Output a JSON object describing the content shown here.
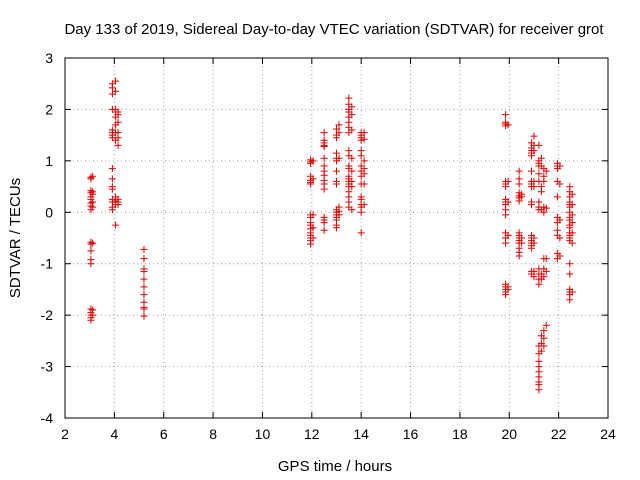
{
  "chart_data": {
    "type": "scatter",
    "title": "Day 133 of 2019, Sidereal Day-to-day VTEC variation (SDTVAR) for receiver grot",
    "xlabel": "GPS time / hours",
    "ylabel": "SDTVAR / TECUs",
    "xlim": [
      2,
      24
    ],
    "ylim": [
      -4,
      3
    ],
    "xticks": [
      2,
      4,
      6,
      8,
      10,
      12,
      14,
      16,
      18,
      20,
      22,
      24
    ],
    "yticks": [
      -4,
      -3,
      -2,
      -1,
      0,
      1,
      2,
      3
    ],
    "xtick_labels": [
      "2",
      "4",
      "6",
      "8",
      "10",
      "12",
      "14",
      "16",
      "18",
      "20",
      "22",
      "24"
    ],
    "ytick_labels": [
      "-4",
      "-3",
      "-2",
      "-1",
      "0",
      "1",
      "2",
      "3"
    ],
    "grid": true,
    "marker": "plus",
    "series": [
      {
        "name": "SDTVAR",
        "color": "#e00000",
        "clusters": [
          {
            "x": 3.05,
            "values": [
              0.68,
              0.65,
              0.42,
              0.38,
              0.3,
              0.25,
              0.18,
              0.12,
              0.05,
              -0.58,
              -0.62,
              -0.75,
              -0.92,
              -1.0,
              -1.88,
              -1.95,
              -2.0,
              -2.05,
              -2.1
            ]
          },
          {
            "x": 3.12,
            "values": [
              0.7,
              0.4,
              0.35,
              0.2,
              0.1,
              -0.6,
              -1.9,
              -2.0
            ]
          },
          {
            "x": 3.92,
            "values": [
              2.5,
              2.42,
              2.3,
              2.0,
              1.6,
              1.55,
              1.5,
              1.45,
              0.85,
              0.65,
              0.5,
              0.45,
              0.25,
              0.2,
              0.1,
              0.05
            ]
          },
          {
            "x": 4.05,
            "values": [
              2.55,
              2.35,
              2.0,
              1.95,
              1.85,
              1.7,
              1.55,
              1.4,
              0.3,
              0.22,
              0.15,
              -0.25
            ]
          },
          {
            "x": 4.15,
            "values": [
              1.95,
              1.9,
              1.75,
              1.55,
              1.45,
              1.3,
              0.25,
              0.2,
              0.15
            ]
          },
          {
            "x": 5.2,
            "values": [
              -0.72,
              -0.9,
              -1.1,
              -1.15,
              -1.3,
              -1.45,
              -1.6,
              -1.75,
              -1.85,
              -1.88,
              -2.02
            ]
          },
          {
            "x": 11.95,
            "values": [
              1.02,
              0.98,
              0.95,
              0.7,
              0.62,
              0.58,
              0.55,
              -0.05,
              -0.1,
              -0.2,
              -0.25,
              -0.32,
              -0.4,
              -0.45,
              -0.5,
              -0.55,
              -0.62
            ]
          },
          {
            "x": 12.05,
            "values": [
              1.0,
              0.65,
              -0.05,
              -0.3,
              -0.5
            ]
          },
          {
            "x": 12.5,
            "values": [
              1.55,
              1.4,
              1.35,
              1.3,
              1.28,
              1.05,
              0.9,
              0.8,
              0.72,
              0.62,
              0.55,
              0.45,
              -0.1,
              -0.15,
              -0.2,
              -0.35
            ]
          },
          {
            "x": 13.0,
            "values": [
              1.62,
              1.5,
              1.45,
              1.15,
              1.05,
              1.0,
              0.8,
              0.6,
              0.55,
              0.05,
              0.0,
              -0.05,
              -0.1,
              -0.15,
              -0.25,
              -0.3
            ]
          },
          {
            "x": 13.1,
            "values": [
              1.7,
              1.55,
              1.05,
              0.1,
              0.02,
              -0.05
            ]
          },
          {
            "x": 13.5,
            "values": [
              2.22,
              2.1,
              2.0,
              1.95,
              1.85,
              1.75,
              1.65,
              1.55,
              1.2,
              1.1,
              0.9,
              0.85,
              0.7,
              0.65,
              0.6,
              0.55,
              0.5,
              0.4,
              0.3,
              0.2,
              0.1
            ]
          },
          {
            "x": 13.62,
            "values": [
              2.05,
              1.9,
              1.6,
              1.05,
              0.8,
              0.6,
              0.5,
              0.05
            ]
          },
          {
            "x": 14.0,
            "values": [
              1.55,
              1.5,
              1.45,
              1.4,
              1.2,
              1.1,
              0.9,
              0.8,
              0.7,
              0.55,
              0.3,
              0.25,
              0.15,
              0.1,
              0.0,
              -0.4
            ]
          },
          {
            "x": 14.12,
            "values": [
              1.55,
              1.42,
              1.0,
              0.85,
              0.75,
              0.55,
              0.15
            ]
          },
          {
            "x": 19.85,
            "values": [
              1.9,
              1.75,
              1.72,
              1.68,
              0.6,
              0.55,
              0.5,
              0.25,
              0.2,
              0.15,
              0.05,
              -0.05,
              -0.4,
              -0.5,
              -0.6,
              -1.4,
              -1.45,
              -1.5,
              -1.55,
              -1.6
            ]
          },
          {
            "x": 19.95,
            "values": [
              1.7,
              0.6,
              0.2,
              -0.45,
              -1.45,
              -1.5
            ]
          },
          {
            "x": 20.4,
            "values": [
              0.8,
              0.65,
              0.55,
              0.38,
              0.32,
              0.28,
              0.22,
              -0.4,
              -0.45,
              -0.5,
              -0.55,
              -0.6,
              -0.7,
              -0.78,
              -0.85
            ]
          },
          {
            "x": 20.5,
            "values": [
              0.35,
              0.3,
              -0.5,
              -0.6
            ]
          },
          {
            "x": 20.9,
            "values": [
              1.35,
              1.25,
              1.2,
              1.15,
              1.1,
              0.8,
              0.6,
              0.55,
              0.5,
              0.2,
              0.15,
              -0.45,
              -0.5,
              -0.55,
              -0.6,
              -0.65,
              -0.7,
              -1.15,
              -1.2
            ]
          },
          {
            "x": 21.0,
            "values": [
              1.48,
              1.3,
              1.2,
              0.6,
              0.5,
              -0.5,
              -0.6,
              -1.15,
              -1.25
            ]
          },
          {
            "x": 21.2,
            "values": [
              1.3,
              1.0,
              0.95,
              0.9,
              0.75,
              0.6,
              0.2,
              0.1,
              0.05,
              -1.1,
              -1.2,
              -1.3,
              -1.4,
              -2.6,
              -2.75,
              -2.9,
              -3.0,
              -3.1,
              -3.2,
              -3.3,
              -3.35,
              -3.45
            ]
          },
          {
            "x": 21.3,
            "values": [
              1.05,
              0.9,
              0.5,
              0.4,
              0.05,
              -1.2,
              -1.3,
              -2.4,
              -2.55,
              -2.7
            ]
          },
          {
            "x": 21.4,
            "values": [
              0.85,
              0.7,
              0.6,
              0.1,
              0.0,
              -0.9,
              -1.1,
              -1.25,
              -2.3,
              -2.45,
              -2.6
            ]
          },
          {
            "x": 21.5,
            "values": [
              0.8,
              0.08,
              -0.9,
              -1.15,
              -2.2
            ]
          },
          {
            "x": 21.95,
            "values": [
              0.95,
              0.9,
              0.85,
              0.6,
              0.3,
              -0.1,
              -0.2,
              -0.35,
              -0.45,
              -0.8,
              -0.9
            ]
          },
          {
            "x": 22.05,
            "values": [
              0.9,
              0.55,
              -0.15,
              -0.5,
              -0.85
            ]
          },
          {
            "x": 22.45,
            "values": [
              0.5,
              0.4,
              0.3,
              0.2,
              0.15,
              0.1,
              0.0,
              -0.1,
              -0.15,
              -0.25,
              -0.3,
              -0.4,
              -0.45,
              -0.5,
              -0.55,
              -1.0,
              -1.2,
              -1.5,
              -1.55,
              -1.6,
              -1.7
            ]
          },
          {
            "x": 22.55,
            "values": [
              0.35,
              0.15,
              -0.05,
              -0.2,
              -0.4,
              -0.6,
              -1.55
            ]
          }
        ]
      }
    ]
  }
}
